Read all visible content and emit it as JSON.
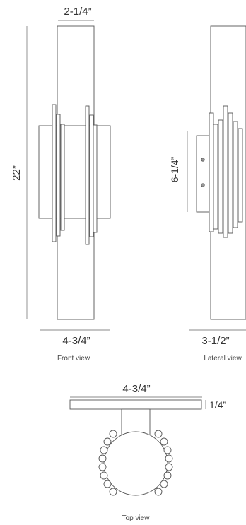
{
  "front_view": {
    "caption": "Front view",
    "dim_top": "2-1/4”",
    "dim_height": "22”",
    "dim_bottom": "4-3/4”"
  },
  "lateral_view": {
    "caption": "Lateral view",
    "dim_mount_height": "6-1/4”",
    "dim_depth": "3-1/2”"
  },
  "top_view": {
    "caption": "Top view",
    "dim_width": "4-3/4”",
    "dim_thickness": "1/4”"
  },
  "colors": {
    "line": "#555555",
    "dim_line": "#888888",
    "text": "#333333"
  }
}
